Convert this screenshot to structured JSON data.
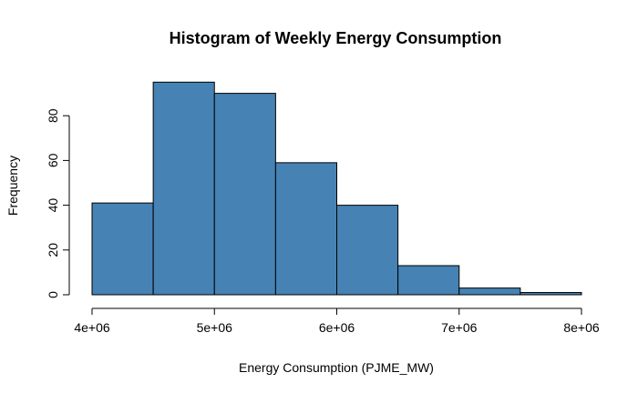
{
  "chart_data": {
    "type": "bar",
    "title": "Histogram of Weekly Energy Consumption",
    "xlabel": "Energy Consumption (PJME_MW)",
    "ylabel": "Frequency",
    "bins": [
      {
        "start": 4000000,
        "end": 4500000,
        "count": 41
      },
      {
        "start": 4500000,
        "end": 5000000,
        "count": 95
      },
      {
        "start": 5000000,
        "end": 5500000,
        "count": 90
      },
      {
        "start": 5500000,
        "end": 6000000,
        "count": 59
      },
      {
        "start": 6000000,
        "end": 6500000,
        "count": 40
      },
      {
        "start": 6500000,
        "end": 7000000,
        "count": 13
      },
      {
        "start": 7000000,
        "end": 7500000,
        "count": 3
      },
      {
        "start": 7500000,
        "end": 8000000,
        "count": 1
      }
    ],
    "xlim": [
      4000000,
      8000000
    ],
    "ylim": [
      0,
      95
    ],
    "x_ticks": [
      {
        "value": 4000000,
        "label": "4e+06"
      },
      {
        "value": 5000000,
        "label": "5e+06"
      },
      {
        "value": 6000000,
        "label": "6e+06"
      },
      {
        "value": 7000000,
        "label": "7e+06"
      },
      {
        "value": 8000000,
        "label": "8e+06"
      }
    ],
    "y_ticks": [
      {
        "value": 0,
        "label": "0"
      },
      {
        "value": 20,
        "label": "20"
      },
      {
        "value": 40,
        "label": "40"
      },
      {
        "value": 60,
        "label": "60"
      },
      {
        "value": 80,
        "label": "80"
      }
    ],
    "bar_color": "#4682b4",
    "grid": false,
    "legend": "none"
  }
}
